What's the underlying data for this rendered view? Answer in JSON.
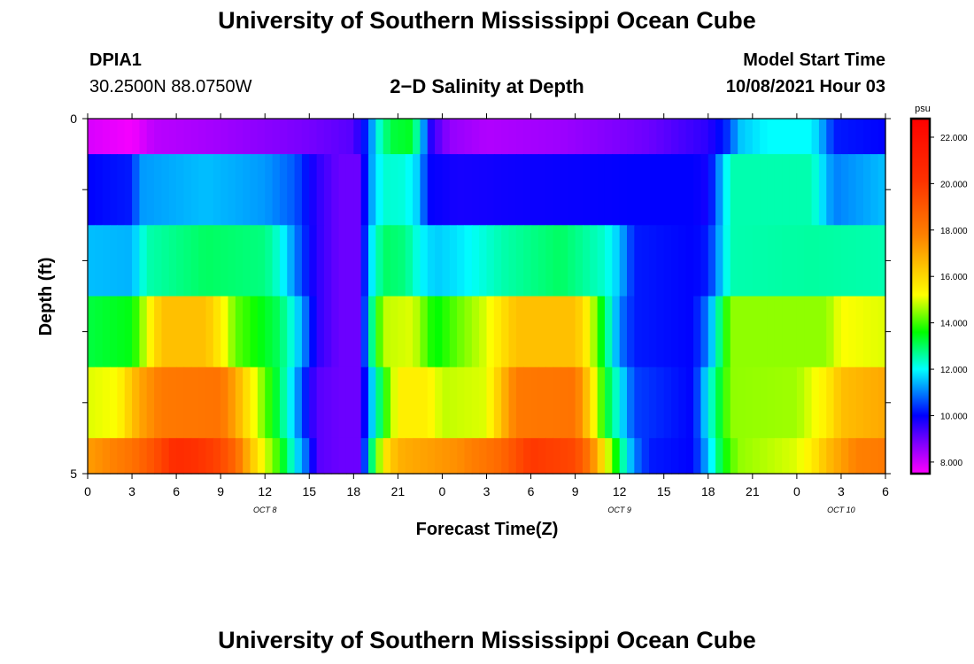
{
  "header": {
    "title": "University of Southern Mississippi Ocean Cube",
    "station_id": "DPIA1",
    "station_coords": "30.2500N  88.0750W",
    "plot_title": "2−D Salinity at Depth",
    "model_start_label": "Model Start Time",
    "model_start_time": "10/08/2021 Hour 03"
  },
  "footer": {
    "title": "University of Southern Mississippi Ocean Cube"
  },
  "chart_data": {
    "type": "heatmap",
    "title": "2-D Salinity at Depth",
    "xlabel": "Forecast Time(Z)",
    "ylabel": "Depth (ft)",
    "x_tick_labels": [
      "0",
      "3",
      "6",
      "9",
      "12",
      "15",
      "18",
      "21",
      "0",
      "3",
      "6",
      "9",
      "12",
      "15",
      "18",
      "21",
      "0",
      "3",
      "6"
    ],
    "date_labels": [
      {
        "text": "OCT 8",
        "tick_index": 4
      },
      {
        "text": "OCT 9",
        "tick_index": 12
      },
      {
        "text": "OCT 10",
        "tick_index": 17
      }
    ],
    "y_tick_labels": [
      {
        "text": "0",
        "value": 0
      },
      {
        "text": "5",
        "value": 5
      }
    ],
    "ylim": [
      0,
      5
    ],
    "x_hours": 54,
    "depth_bands": [
      {
        "depth_top": 0.0,
        "depth_bottom": 0.5,
        "profile": [
          [
            0,
            7.9
          ],
          [
            3,
            7.6
          ],
          [
            4.5,
            8.2
          ],
          [
            8,
            8.4
          ],
          [
            12,
            8.7
          ],
          [
            15,
            8.9
          ],
          [
            18,
            9.2
          ],
          [
            19,
            10.5
          ],
          [
            19.5,
            12
          ],
          [
            20.5,
            13.2
          ],
          [
            22,
            13.4
          ],
          [
            22.8,
            11
          ],
          [
            23.3,
            9.5
          ],
          [
            24.5,
            8.6
          ],
          [
            27,
            8.3
          ],
          [
            32,
            8.5
          ],
          [
            38,
            9.0
          ],
          [
            42,
            9.6
          ],
          [
            43.5,
            10.5
          ],
          [
            44,
            11.5
          ],
          [
            46,
            12.0
          ],
          [
            49,
            12.0
          ],
          [
            50,
            11
          ],
          [
            50.5,
            10.2
          ],
          [
            54,
            10.0
          ]
        ]
      },
      {
        "depth_top": 0.5,
        "depth_bottom": 1.5,
        "profile": [
          [
            0,
            10.0
          ],
          [
            3,
            10.2
          ],
          [
            3.5,
            11.2
          ],
          [
            8,
            11.5
          ],
          [
            12,
            11.2
          ],
          [
            14,
            10.7
          ],
          [
            15.5,
            9.6
          ],
          [
            17,
            9.0
          ],
          [
            18.5,
            9.0
          ],
          [
            19,
            11.0
          ],
          [
            20,
            12.3
          ],
          [
            21.5,
            12.2
          ],
          [
            22.5,
            11.5
          ],
          [
            23,
            10.0
          ],
          [
            25,
            9.8
          ],
          [
            30,
            9.9
          ],
          [
            37,
            10.0
          ],
          [
            41,
            10.0
          ],
          [
            42,
            9.8
          ],
          [
            43.5,
            12.5
          ],
          [
            49,
            12.5
          ],
          [
            50.5,
            11.0
          ],
          [
            54,
            11.5
          ]
        ]
      },
      {
        "depth_top": 1.5,
        "depth_bottom": 2.5,
        "profile": [
          [
            0,
            11.5
          ],
          [
            3,
            11.4
          ],
          [
            4,
            12.5
          ],
          [
            8,
            13.0
          ],
          [
            12,
            12.8
          ],
          [
            13,
            12.2
          ],
          [
            14.5,
            10.5
          ],
          [
            15.5,
            9.6
          ],
          [
            17,
            9.0
          ],
          [
            18.5,
            9.0
          ],
          [
            19,
            11.5
          ],
          [
            20,
            13.0
          ],
          [
            21.5,
            12.8
          ],
          [
            22.5,
            12.0
          ],
          [
            23.5,
            11.6
          ],
          [
            25,
            11.8
          ],
          [
            28,
            12.5
          ],
          [
            32,
            13.0
          ],
          [
            35,
            12.3
          ],
          [
            36,
            11.5
          ],
          [
            37,
            10.2
          ],
          [
            41,
            10.0
          ],
          [
            42,
            10.2
          ],
          [
            43.5,
            12.5
          ],
          [
            49,
            12.6
          ],
          [
            54,
            12.5
          ]
        ]
      },
      {
        "depth_top": 2.5,
        "depth_bottom": 3.5,
        "profile": [
          [
            0,
            13.2
          ],
          [
            3,
            13.5
          ],
          [
            4,
            15.0
          ],
          [
            5,
            16.5
          ],
          [
            8,
            16.5
          ],
          [
            9,
            15.5
          ],
          [
            10,
            14.2
          ],
          [
            13,
            13.0
          ],
          [
            14,
            12.0
          ],
          [
            15,
            10.5
          ],
          [
            15.5,
            9.6
          ],
          [
            17,
            9.0
          ],
          [
            18.5,
            9.0
          ],
          [
            19,
            12
          ],
          [
            20,
            14.8
          ],
          [
            22,
            15.0
          ],
          [
            23.5,
            13.5
          ],
          [
            25,
            14.2
          ],
          [
            27,
            15.0
          ],
          [
            29,
            16.5
          ],
          [
            33,
            16.5
          ],
          [
            34,
            15.2
          ],
          [
            35,
            13.0
          ],
          [
            36,
            11.0
          ],
          [
            37,
            10.2
          ],
          [
            41,
            10.0
          ],
          [
            42,
            11.0
          ],
          [
            43.5,
            14.5
          ],
          [
            50,
            14.5
          ],
          [
            51,
            15.2
          ],
          [
            54,
            15.0
          ]
        ]
      },
      {
        "depth_top": 3.5,
        "depth_bottom": 4.5,
        "profile": [
          [
            0,
            15.0
          ],
          [
            2,
            15.2
          ],
          [
            3.5,
            17.0
          ],
          [
            5,
            18.0
          ],
          [
            9,
            18.2
          ],
          [
            10,
            17.0
          ],
          [
            11,
            15.5
          ],
          [
            12,
            14.2
          ],
          [
            13,
            13.0
          ],
          [
            14,
            11.5
          ],
          [
            15,
            9.8
          ],
          [
            15.5,
            9.2
          ],
          [
            17,
            9.0
          ],
          [
            18.5,
            9.0
          ],
          [
            19,
            11.0
          ],
          [
            20,
            13.5
          ],
          [
            21,
            15.5
          ],
          [
            23,
            15.5
          ],
          [
            24,
            14.8
          ],
          [
            27,
            15.0
          ],
          [
            28,
            16.5
          ],
          [
            29,
            18.0
          ],
          [
            33,
            18.2
          ],
          [
            34,
            16.0
          ],
          [
            35,
            13.5
          ],
          [
            36,
            12.0
          ],
          [
            37,
            10.5
          ],
          [
            41,
            10.0
          ],
          [
            42,
            12.0
          ],
          [
            43.5,
            14.5
          ],
          [
            48,
            14.6
          ],
          [
            50,
            15.5
          ],
          [
            51,
            16.5
          ],
          [
            54,
            17.0
          ]
        ]
      },
      {
        "depth_top": 4.5,
        "depth_bottom": 5.0,
        "profile": [
          [
            0,
            17.2
          ],
          [
            3,
            18.2
          ],
          [
            4.5,
            19.2
          ],
          [
            6,
            20.5
          ],
          [
            8,
            20.0
          ],
          [
            9,
            19.5
          ],
          [
            10,
            18.5
          ],
          [
            11,
            16.5
          ],
          [
            12,
            15.0
          ],
          [
            13,
            13.8
          ],
          [
            14,
            12.0
          ],
          [
            15,
            10.5
          ],
          [
            15.5,
            9.2
          ],
          [
            17,
            9.0
          ],
          [
            18.5,
            9.0
          ],
          [
            19,
            12.0
          ],
          [
            20,
            15.5
          ],
          [
            21,
            16.8
          ],
          [
            25,
            17.5
          ],
          [
            28,
            18.5
          ],
          [
            30,
            20.0
          ],
          [
            33,
            19.5
          ],
          [
            34,
            18.0
          ],
          [
            35,
            15.5
          ],
          [
            36,
            13.0
          ],
          [
            37,
            11.0
          ],
          [
            38,
            10.2
          ],
          [
            41,
            10.0
          ],
          [
            42,
            11.5
          ],
          [
            43,
            13.5
          ],
          [
            44,
            14.5
          ],
          [
            48,
            15.0
          ],
          [
            49,
            15.5
          ],
          [
            50,
            16.5
          ],
          [
            52,
            17.8
          ],
          [
            54,
            18.0
          ]
        ]
      }
    ],
    "colorbar": {
      "unit": "psu",
      "range": [
        7.5,
        22.8
      ],
      "tick_labels": [
        "22.000",
        "20.000",
        "18.000",
        "16.000",
        "14.000",
        "12.000",
        "10.000",
        "8.000"
      ],
      "tick_values": [
        22,
        20,
        18,
        16,
        14,
        12,
        10,
        8
      ],
      "color_stops": [
        {
          "value": 7.5,
          "color": "#ff00ff"
        },
        {
          "value": 8.8,
          "color": "#8000ff"
        },
        {
          "value": 10.0,
          "color": "#0000ff"
        },
        {
          "value": 12.0,
          "color": "#00ffff"
        },
        {
          "value": 13.6,
          "color": "#00ff00"
        },
        {
          "value": 15.2,
          "color": "#ffff00"
        },
        {
          "value": 17.8,
          "color": "#ff8000"
        },
        {
          "value": 20.2,
          "color": "#ff3000"
        },
        {
          "value": 22.8,
          "color": "#ff0000"
        }
      ]
    }
  }
}
